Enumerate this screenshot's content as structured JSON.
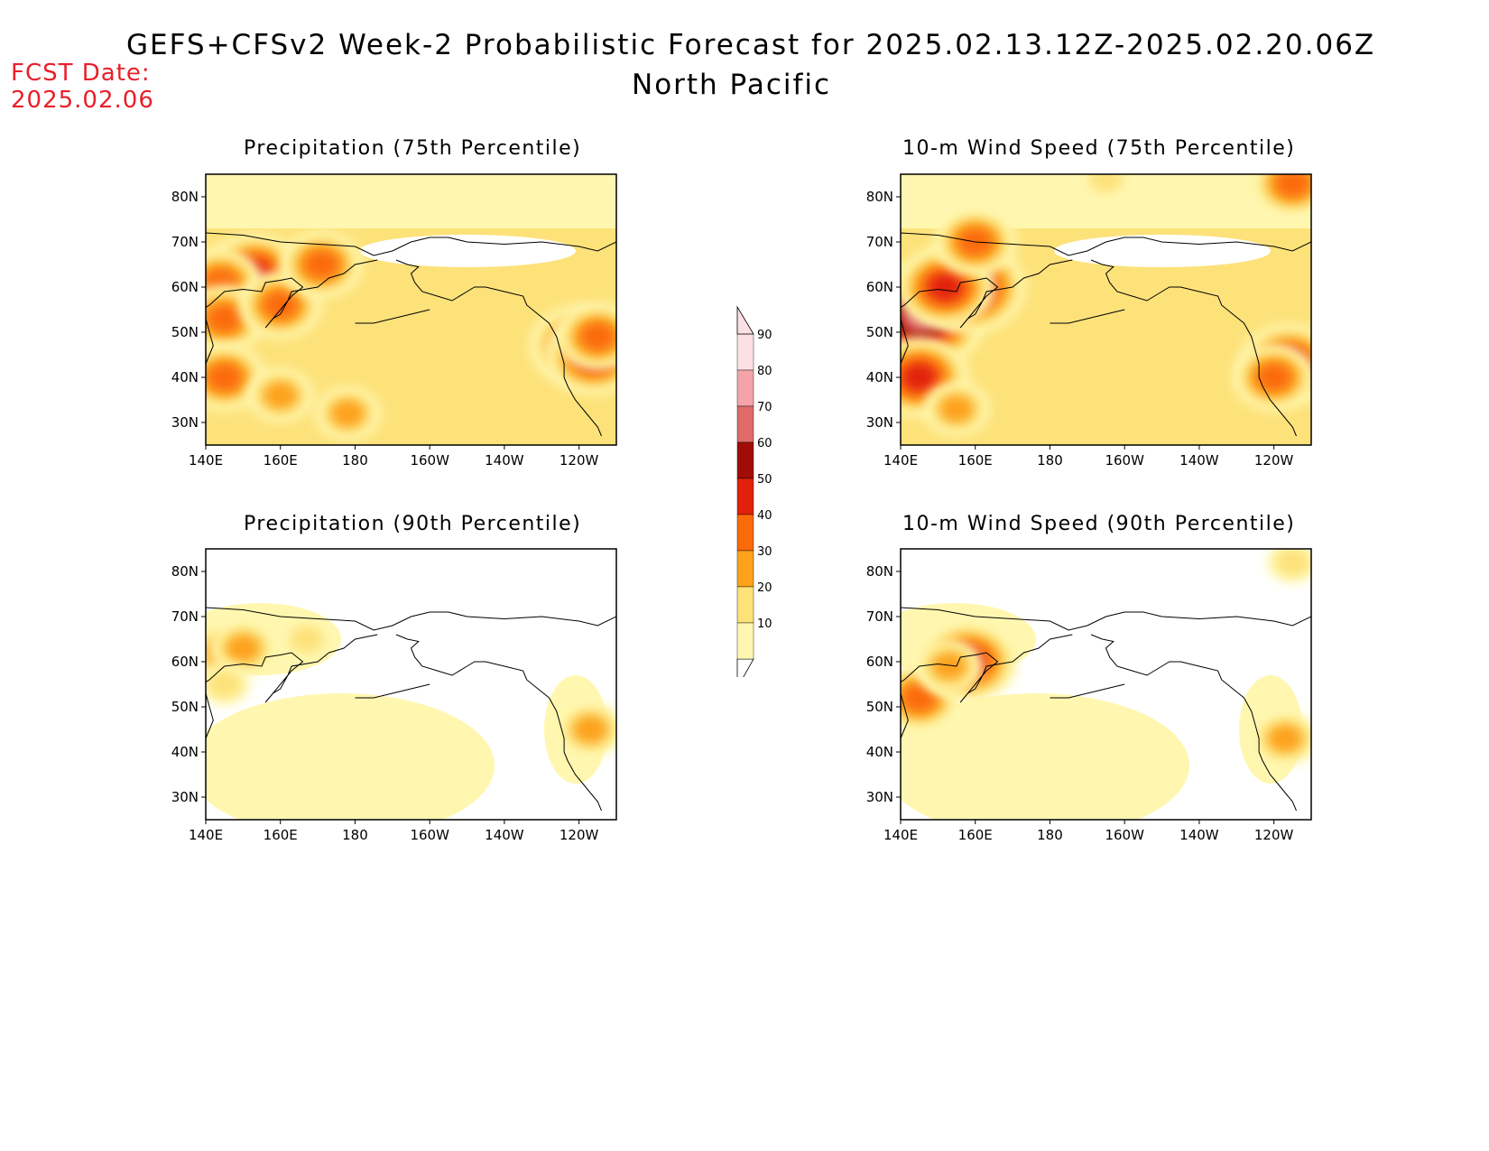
{
  "header": {
    "title": "GEFS+CFSv2 Week-2 Probabilistic Forecast for 2025.02.13.12Z-2025.02.20.06Z",
    "region": "North Pacific",
    "fcst_label": "FCST Date:",
    "fcst_date": "2025.02.06"
  },
  "colorbar": {
    "levels": [
      "10",
      "20",
      "30",
      "40",
      "50",
      "60",
      "70",
      "80",
      "90"
    ],
    "colors": [
      "#fff7b0",
      "#fde27a",
      "#fda21a",
      "#fb6a0a",
      "#e2200b",
      "#a10d06",
      "#e06a6a",
      "#f4a4a8",
      "#fde0e4"
    ]
  },
  "axes": {
    "x_ticks": [
      "140E",
      "160E",
      "180",
      "160W",
      "140W",
      "120W"
    ],
    "y_ticks": [
      "80N",
      "70N",
      "60N",
      "50N",
      "40N",
      "30N"
    ]
  },
  "chart_data": [
    {
      "type": "heatmap",
      "title": "Precipitation (75th Percentile)",
      "xlabel": "",
      "ylabel": "",
      "x_range_deg_east": [
        140,
        250
      ],
      "y_range_deg_north": [
        25,
        85
      ],
      "hotspots": [
        {
          "lon": 153,
          "lat": 63,
          "prob": 50
        },
        {
          "lon": 144,
          "lat": 61,
          "prob": 40
        },
        {
          "lon": 145,
          "lat": 53,
          "prob": 40
        },
        {
          "lon": 160,
          "lat": 56,
          "prob": 40
        },
        {
          "lon": 171,
          "lat": 65,
          "prob": 40
        },
        {
          "lon": 145,
          "lat": 40,
          "prob": 40
        },
        {
          "lon": 240,
          "lat": 47,
          "prob": 50
        },
        {
          "lon": 244,
          "lat": 45,
          "prob": 50
        },
        {
          "lon": 245,
          "lat": 49,
          "prob": 40
        },
        {
          "lon": 160,
          "lat": 36,
          "prob": 30
        },
        {
          "lon": 178,
          "lat": 32,
          "prob": 30
        }
      ]
    },
    {
      "type": "heatmap",
      "title": "10-m Wind Speed (75th Percentile)",
      "xlabel": "",
      "ylabel": "",
      "x_range_deg_east": [
        140,
        250
      ],
      "y_range_deg_north": [
        25,
        85
      ],
      "hotspots": [
        {
          "lon": 145,
          "lat": 53,
          "prob": 70
        },
        {
          "lon": 145,
          "lat": 40,
          "prob": 50
        },
        {
          "lon": 158,
          "lat": 60,
          "prob": 60
        },
        {
          "lon": 152,
          "lat": 60,
          "prob": 50
        },
        {
          "lon": 160,
          "lat": 70,
          "prob": 40
        },
        {
          "lon": 244,
          "lat": 43,
          "prob": 50
        },
        {
          "lon": 240,
          "lat": 40,
          "prob": 40
        },
        {
          "lon": 245,
          "lat": 83,
          "prob": 40
        },
        {
          "lon": 155,
          "lat": 33,
          "prob": 30
        },
        {
          "lon": 195,
          "lat": 84,
          "prob": 20
        }
      ]
    },
    {
      "type": "heatmap",
      "title": "Precipitation (90th Percentile)",
      "xlabel": "",
      "ylabel": "",
      "x_range_deg_east": [
        140,
        250
      ],
      "y_range_deg_north": [
        25,
        85
      ],
      "hotspots": [
        {
          "lon": 144,
          "lat": 62,
          "prob": 30
        },
        {
          "lon": 150,
          "lat": 63,
          "prob": 30
        },
        {
          "lon": 167,
          "lat": 65,
          "prob": 20
        },
        {
          "lon": 243,
          "lat": 45,
          "prob": 30
        },
        {
          "lon": 175,
          "lat": 38,
          "prob": 10
        },
        {
          "lon": 145,
          "lat": 55,
          "prob": 20
        }
      ]
    },
    {
      "type": "heatmap",
      "title": "10-m Wind Speed (90th Percentile)",
      "xlabel": "",
      "ylabel": "",
      "x_range_deg_east": [
        140,
        250
      ],
      "y_range_deg_north": [
        25,
        85
      ],
      "hotspots": [
        {
          "lon": 145,
          "lat": 52,
          "prob": 40
        },
        {
          "lon": 158,
          "lat": 60,
          "prob": 50
        },
        {
          "lon": 153,
          "lat": 59,
          "prob": 30
        },
        {
          "lon": 243,
          "lat": 43,
          "prob": 30
        },
        {
          "lon": 245,
          "lat": 82,
          "prob": 20
        },
        {
          "lon": 150,
          "lat": 35,
          "prob": 10
        }
      ]
    }
  ]
}
